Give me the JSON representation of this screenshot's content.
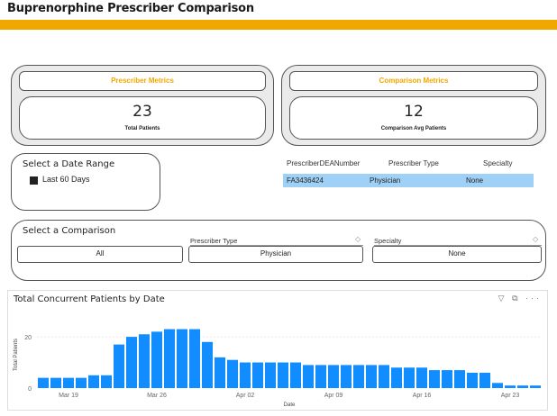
{
  "header": {
    "title": "Buprenorphine Prescriber Comparison"
  },
  "colors": {
    "accent": "#f0a800",
    "bar": "#118dff",
    "selected_row": "#9fd0f6"
  },
  "prescriber_metrics": {
    "header": "Prescriber Metrics",
    "value": "23",
    "label": "Total Patients"
  },
  "comparison_metrics": {
    "header": "Comparison Metrics",
    "value": "12",
    "label": "Comparison Avg Patients"
  },
  "date_range": {
    "title": "Select a Date Range",
    "option": "Last 60 Days"
  },
  "prescriber_table": {
    "columns": [
      "PrescriberDEANumber",
      "Prescriber Type",
      "Specialty"
    ],
    "rows": [
      [
        "FA3436424",
        "Physician",
        "None"
      ]
    ]
  },
  "comparison": {
    "title": "Select a Comparison",
    "all_button": "All",
    "prescriber_type_label": "Prescriber Type",
    "prescriber_type_value": "Physician",
    "specialty_label": "Specialty",
    "specialty_value": "None"
  },
  "chart_icons": "▽ ⧉ ···",
  "chart_data": {
    "type": "bar",
    "title": "Total Concurrent Patients by Date",
    "xlabel": "Date",
    "ylabel": "Total Patients",
    "ylim": [
      0,
      26
    ],
    "yticks": [
      "0",
      "20"
    ],
    "xticks": [
      "Mar 19",
      "Mar 26",
      "Apr 02",
      "Apr 09",
      "Apr 16",
      "Apr 23"
    ],
    "xtick_indices": [
      2,
      9,
      16,
      23,
      30,
      37
    ],
    "values": [
      4,
      4,
      4,
      4,
      5,
      5,
      17,
      20,
      21,
      22,
      23,
      23,
      23,
      18,
      12,
      11,
      10,
      10,
      10,
      10,
      10,
      9,
      9,
      9,
      9,
      9,
      9,
      9,
      8,
      8,
      8,
      7,
      7,
      7,
      6,
      6,
      2,
      1,
      1,
      1
    ]
  }
}
